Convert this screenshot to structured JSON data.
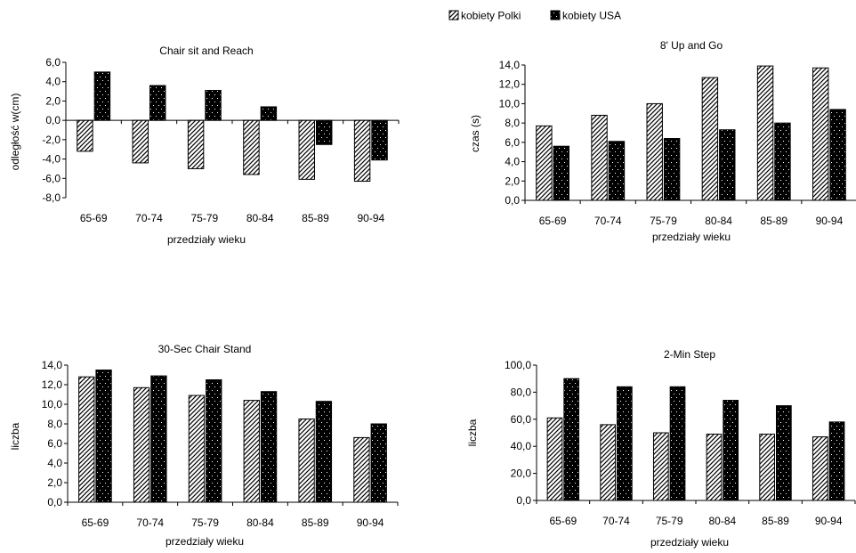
{
  "legend": {
    "items": [
      {
        "label": "kobiety Polki",
        "pattern": "hatch"
      },
      {
        "label": "kobiety USA",
        "pattern": "dots"
      }
    ]
  },
  "colors": {
    "hatch_line": "#000000",
    "solid": "#000000",
    "background": "#ffffff"
  },
  "chart_data": [
    {
      "type": "bar",
      "title": "Chair sit and Reach",
      "xlabel": "przedziały wieku",
      "ylabel": "odległość w(cm)",
      "categories": [
        "65-69",
        "70-74",
        "75-79",
        "80-84",
        "85-89",
        "90-94"
      ],
      "ylim": [
        -8,
        6
      ],
      "yticks": [
        -8,
        -6,
        -4,
        -2,
        0,
        2,
        4,
        6
      ],
      "ytick_labels": [
        "-8,0",
        "-6,0",
        "-4,0",
        "-2,0",
        "0,0",
        "2,0",
        "4,0",
        "6,0"
      ],
      "series": [
        {
          "name": "kobiety Polki",
          "values": [
            -3.2,
            -4.4,
            -5.0,
            -5.6,
            -6.1,
            -6.3
          ]
        },
        {
          "name": "kobiety USA",
          "values": [
            5.0,
            3.6,
            3.1,
            1.4,
            -2.5,
            -4.1
          ]
        }
      ]
    },
    {
      "type": "bar",
      "title": "8' Up and Go",
      "xlabel": "przedziały wieku",
      "ylabel": "czas (s)",
      "categories": [
        "65-69",
        "70-74",
        "75-79",
        "80-84",
        "85-89",
        "90-94"
      ],
      "ylim": [
        0,
        14
      ],
      "yticks": [
        0,
        2,
        4,
        6,
        8,
        10,
        12,
        14
      ],
      "ytick_labels": [
        "0,0",
        "2,0",
        "4,0",
        "6,0",
        "8,0",
        "10,0",
        "12,0",
        "14,0"
      ],
      "series": [
        {
          "name": "kobiety Polki",
          "values": [
            7.7,
            8.8,
            10.0,
            12.7,
            13.9,
            13.7
          ]
        },
        {
          "name": "kobiety USA",
          "values": [
            5.6,
            6.1,
            6.4,
            7.3,
            8.0,
            9.4
          ]
        }
      ]
    },
    {
      "type": "bar",
      "title": "30-Sec Chair Stand",
      "xlabel": "przedziały wieku",
      "ylabel": "liczba",
      "categories": [
        "65-69",
        "70-74",
        "75-79",
        "80-84",
        "85-89",
        "90-94"
      ],
      "ylim": [
        0,
        14
      ],
      "yticks": [
        0,
        2,
        4,
        6,
        8,
        10,
        12,
        14
      ],
      "ytick_labels": [
        "0,0",
        "2,0",
        "4,0",
        "6,0",
        "8,0",
        "10,0",
        "12,0",
        "14,0"
      ],
      "series": [
        {
          "name": "kobiety Polki",
          "values": [
            12.8,
            11.7,
            10.9,
            10.4,
            8.5,
            6.6
          ]
        },
        {
          "name": "kobiety USA",
          "values": [
            13.5,
            12.9,
            12.5,
            11.3,
            10.3,
            8.0
          ]
        }
      ]
    },
    {
      "type": "bar",
      "title": "2-Min Step",
      "xlabel": "przedziały wieku",
      "ylabel": "liczba",
      "categories": [
        "65-69",
        "70-74",
        "75-79",
        "80-84",
        "85-89",
        "90-94"
      ],
      "ylim": [
        0,
        100
      ],
      "yticks": [
        0,
        20,
        40,
        60,
        80,
        100
      ],
      "ytick_labels": [
        "0,0",
        "20,0",
        "40,0",
        "60,0",
        "80,0",
        "100,0"
      ],
      "series": [
        {
          "name": "kobiety Polki",
          "values": [
            61,
            56,
            50,
            49,
            49,
            47
          ]
        },
        {
          "name": "kobiety USA",
          "values": [
            90,
            84,
            84,
            74,
            70,
            58
          ]
        }
      ]
    }
  ]
}
